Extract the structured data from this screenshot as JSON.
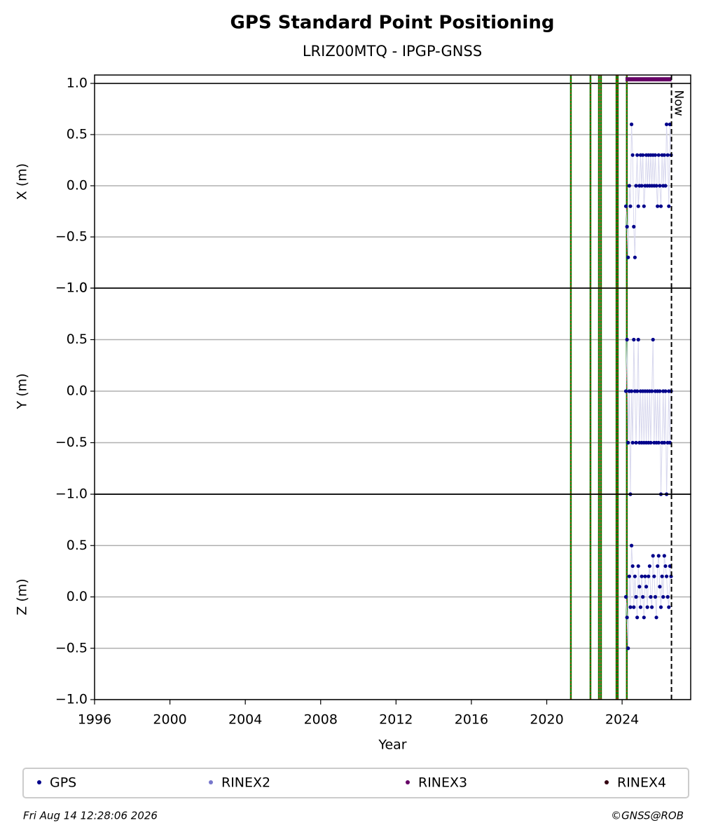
{
  "title": "GPS Standard Point Positioning",
  "subtitle": "LRIZ00MTQ - IPGP-GNSS",
  "now": {
    "x": 2026.62,
    "label": "Now"
  },
  "legend": [
    {
      "name": "GPS",
      "color": "#00008b"
    },
    {
      "name": "RINEX2",
      "color": "#7777cc"
    },
    {
      "name": "RINEX3",
      "color": "#660066"
    },
    {
      "name": "RINEX4",
      "color": "#330011"
    }
  ],
  "footer": {
    "left": "Fri Aug 14 12:28:06 2026",
    "right": "©GNSS@ROB"
  },
  "chart_data": [
    {
      "type": "scatter",
      "ylabel": "X (m)",
      "color": "#00008b",
      "xlim": [
        1996,
        2027.64
      ],
      "ylim": [
        -1,
        1.082
      ],
      "yticks": [
        {
          "value": -1,
          "label": "−1.0"
        },
        {
          "value": -0.5,
          "label": "−0.5"
        },
        {
          "value": 0,
          "label": "0.0"
        },
        {
          "value": 0.5,
          "label": "0.5"
        },
        {
          "value": 1,
          "label": "1.0"
        }
      ],
      "hline": 1,
      "grid": true,
      "events": [
        2021.28,
        2022.32,
        2022.77,
        2022.88,
        2023.7,
        2023.77,
        2024.25
      ],
      "span": {
        "x": [
          2024.18,
          2026.62
        ],
        "y": 1.04,
        "color": "#660066"
      },
      "x": [
        2024.2,
        2024.26,
        2024.32,
        2024.38,
        2024.44,
        2024.5,
        2024.56,
        2024.62,
        2024.68,
        2024.74,
        2024.8,
        2024.86,
        2024.92,
        2024.98,
        2025.04,
        2025.1,
        2025.16,
        2025.22,
        2025.28,
        2025.34,
        2025.4,
        2025.46,
        2025.52,
        2025.58,
        2025.64,
        2025.7,
        2025.76,
        2025.82,
        2025.88,
        2025.94,
        2026.0,
        2026.06,
        2026.12,
        2026.18,
        2026.24,
        2026.3,
        2026.36,
        2026.42,
        2026.48,
        2026.54,
        2026.6
      ],
      "values": [
        -0.2,
        -0.4,
        -0.7,
        0,
        -0.2,
        0.6,
        0.3,
        -0.4,
        -0.7,
        0,
        0.3,
        -0.2,
        0,
        0.3,
        0,
        0.3,
        -0.2,
        0,
        0.3,
        0,
        0.3,
        0,
        0.3,
        0,
        0.3,
        0,
        0.3,
        0,
        -0.2,
        0.3,
        0,
        -0.2,
        0.3,
        0,
        0.3,
        0,
        0.6,
        0.3,
        -0.2,
        0.6,
        0.3
      ]
    },
    {
      "type": "scatter",
      "ylabel": "Y (m)",
      "color": "#00008b",
      "xlim": [
        1996,
        2027.64
      ],
      "ylim": [
        -1,
        1
      ],
      "yticks": [
        {
          "value": -1,
          "label": "−1.0"
        },
        {
          "value": -0.5,
          "label": "−0.5"
        },
        {
          "value": 0,
          "label": "0.0"
        },
        {
          "value": 0.5,
          "label": "0.5"
        },
        {
          "value": 1,
          "label": "1.0"
        }
      ],
      "grid": true,
      "events": [
        2021.28,
        2022.32,
        2022.77,
        2022.88,
        2023.7,
        2023.77,
        2024.25
      ],
      "x": [
        2024.2,
        2024.26,
        2024.32,
        2024.38,
        2024.44,
        2024.5,
        2024.56,
        2024.62,
        2024.68,
        2024.74,
        2024.8,
        2024.86,
        2024.92,
        2024.98,
        2025.04,
        2025.1,
        2025.16,
        2025.22,
        2025.28,
        2025.34,
        2025.4,
        2025.46,
        2025.52,
        2025.58,
        2025.64,
        2025.7,
        2025.76,
        2025.82,
        2025.88,
        2025.94,
        2026.0,
        2026.06,
        2026.12,
        2026.18,
        2026.24,
        2026.3,
        2026.36,
        2026.42,
        2026.48,
        2026.54,
        2026.6
      ],
      "values": [
        0,
        0.5,
        -0.5,
        0,
        -1,
        0,
        -0.5,
        0.5,
        0,
        -0.5,
        0,
        0.5,
        -0.5,
        0,
        -0.5,
        0,
        -0.5,
        0,
        -0.5,
        0,
        -0.5,
        0,
        -0.5,
        0,
        0.5,
        -0.5,
        0,
        -0.5,
        0,
        -0.5,
        0,
        -1,
        -0.5,
        0,
        -0.5,
        0,
        -1,
        -0.5,
        0,
        -0.5,
        0
      ]
    },
    {
      "type": "scatter",
      "ylabel": "Z (m)",
      "xlabel": "Year",
      "color": "#00008b",
      "xlim": [
        1996,
        2027.64
      ],
      "ylim": [
        -1,
        1
      ],
      "xticks": [
        1996,
        2000,
        2004,
        2008,
        2012,
        2016,
        2020,
        2024
      ],
      "yticks": [
        {
          "value": -1,
          "label": "−1.0"
        },
        {
          "value": -0.5,
          "label": "−0.5"
        },
        {
          "value": 0,
          "label": "0.0"
        },
        {
          "value": 0.5,
          "label": "0.5"
        }
      ],
      "grid": true,
      "events": [
        2021.28,
        2022.32,
        2022.77,
        2022.88,
        2023.7,
        2023.77,
        2024.25
      ],
      "x": [
        2024.2,
        2024.26,
        2024.32,
        2024.38,
        2024.44,
        2024.5,
        2024.56,
        2024.62,
        2024.68,
        2024.74,
        2024.8,
        2024.86,
        2024.92,
        2024.98,
        2025.04,
        2025.1,
        2025.16,
        2025.22,
        2025.28,
        2025.34,
        2025.4,
        2025.46,
        2025.52,
        2025.58,
        2025.64,
        2025.7,
        2025.76,
        2025.82,
        2025.88,
        2025.94,
        2026.0,
        2026.06,
        2026.12,
        2026.18,
        2026.24,
        2026.3,
        2026.36,
        2026.42,
        2026.48,
        2026.54,
        2026.6
      ],
      "values": [
        0,
        -0.2,
        -0.5,
        0.2,
        -0.1,
        0.5,
        0.3,
        -0.1,
        0.2,
        0,
        -0.2,
        0.3,
        0.1,
        -0.1,
        0.2,
        0,
        -0.2,
        0.2,
        0.1,
        -0.1,
        0.2,
        0.3,
        0,
        -0.1,
        0.4,
        0.2,
        0,
        -0.2,
        0.3,
        0.4,
        0.1,
        -0.1,
        0.2,
        0,
        0.4,
        0.3,
        0.2,
        0,
        -0.1,
        0.3,
        0.2
      ]
    }
  ]
}
